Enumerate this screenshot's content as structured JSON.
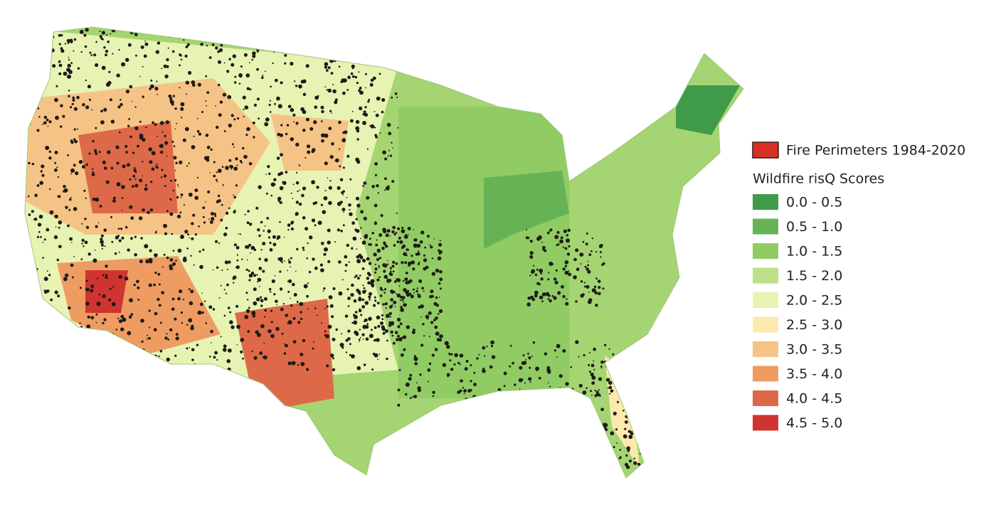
{
  "legend": {
    "fire_label": "Fire Perimeters 1984-2020",
    "fire_color": "#d73027",
    "title": "Wildfire risQ Scores",
    "classes": [
      {
        "label": "0.0 - 0.5",
        "color": "#3f9a4a"
      },
      {
        "label": "0.5 - 1.0",
        "color": "#66b356"
      },
      {
        "label": "1.0 - 1.5",
        "color": "#91cb64"
      },
      {
        "label": "1.5 - 2.0",
        "color": "#bde189"
      },
      {
        "label": "2.0 - 2.5",
        "color": "#e6f3b3"
      },
      {
        "label": "2.5 - 3.0",
        "color": "#fde9ac"
      },
      {
        "label": "3.0 - 3.5",
        "color": "#f6c386"
      },
      {
        "label": "3.5 - 4.0",
        "color": "#ee9c62"
      },
      {
        "label": "4.0 - 4.5",
        "color": "#de6948"
      },
      {
        "label": "4.5 - 5.0",
        "color": "#cf3431"
      }
    ]
  }
}
